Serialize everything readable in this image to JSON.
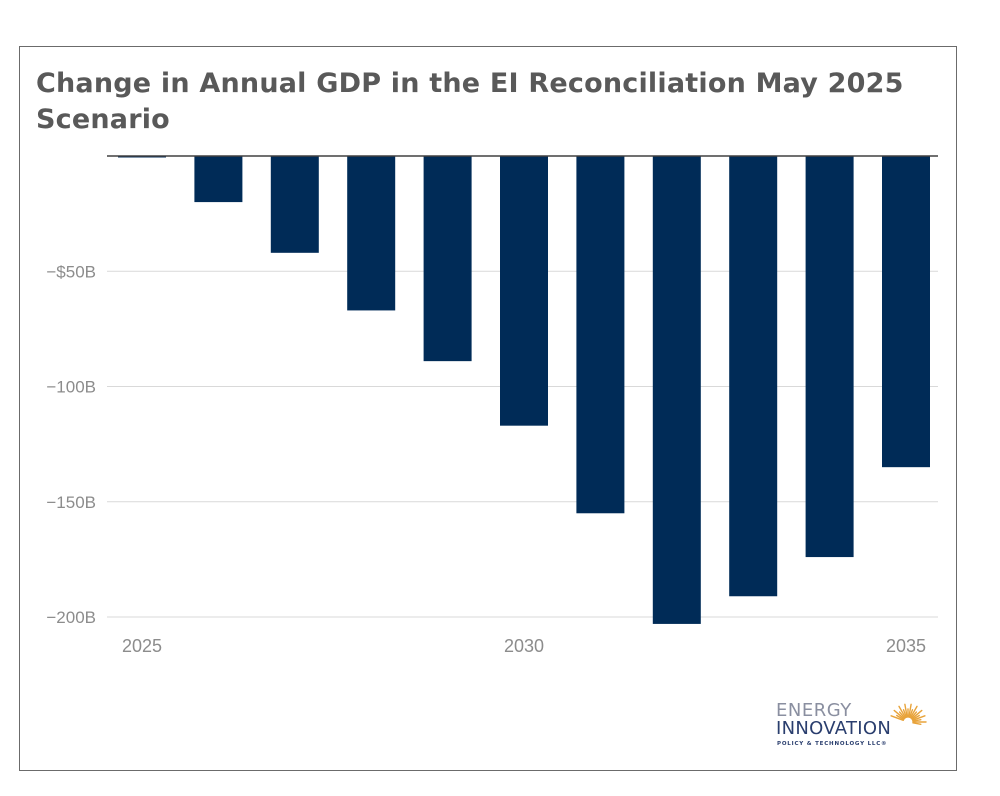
{
  "chart_data": {
    "type": "bar",
    "title": "Change in Annual GDP in the EI Reconciliation May 2025 Scenario",
    "xlabel": "",
    "ylabel": "",
    "categories": [
      2025,
      2026,
      2027,
      2028,
      2029,
      2030,
      2031,
      2032,
      2033,
      2034,
      2035
    ],
    "values": [
      0,
      -20,
      -42,
      -67,
      -89,
      -117,
      -155,
      -203,
      -191,
      -174,
      -135
    ],
    "ylim": [
      -200,
      0
    ],
    "yticks": [
      {
        "value": -50,
        "label": "−$50B"
      },
      {
        "value": -100,
        "label": "−100B"
      },
      {
        "value": -150,
        "label": "−150B"
      },
      {
        "value": -200,
        "label": "−200B"
      }
    ],
    "xticks": [
      {
        "value": 2025,
        "label": "2025"
      },
      {
        "value": 2030,
        "label": "2030"
      },
      {
        "value": 2035,
        "label": "2035"
      }
    ],
    "grid": true,
    "bar_color": "#002b57"
  },
  "logo": {
    "line1": "ENERGY",
    "line2": "INNOVATION",
    "line3": "POLICY & TECHNOLOGY LLC®",
    "sun_color": "#e8a33a"
  }
}
